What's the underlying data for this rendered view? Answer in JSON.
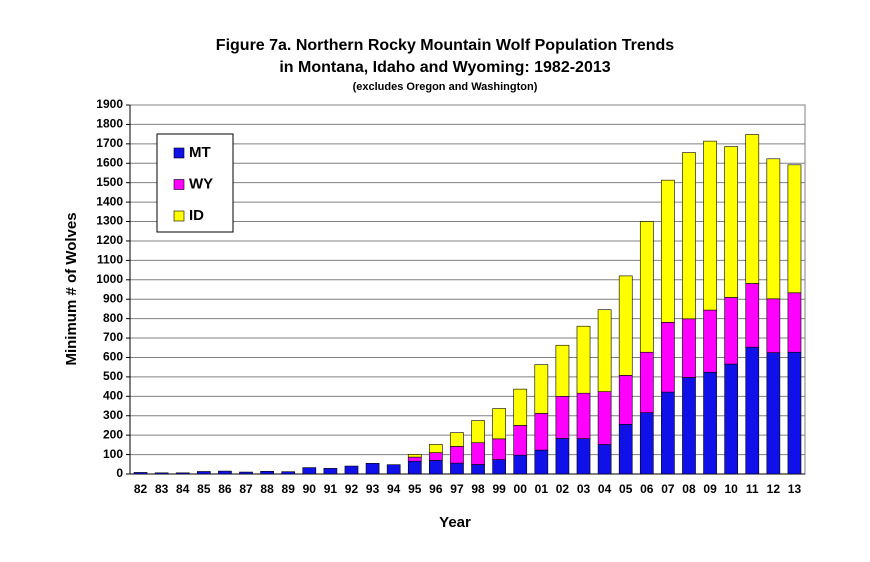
{
  "chart_data": {
    "type": "stacked-bar",
    "title": "Figure 7a.  Northern Rocky Mountain Wolf Population Trends",
    "subtitle": "in Montana, Idaho and Wyoming: 1982-2013",
    "note": "(excludes Oregon and Washington)",
    "x_label": "Year",
    "y_label": "Minimum # of Wolves",
    "categories": [
      "82",
      "83",
      "84",
      "85",
      "86",
      "87",
      "88",
      "89",
      "90",
      "91",
      "92",
      "93",
      "94",
      "95",
      "96",
      "97",
      "98",
      "99",
      "00",
      "01",
      "02",
      "03",
      "04",
      "05",
      "06",
      "07",
      "08",
      "09",
      "10",
      "11",
      "12",
      "13"
    ],
    "series": [
      {
        "name": "MT",
        "color": "#1010e8",
        "values": [
          8,
          6,
          6,
          13,
          15,
          10,
          14,
          12,
          33,
          29,
          41,
          55,
          48,
          66,
          70,
          56,
          49,
          74,
          97,
          123,
          183,
          182,
          152,
          256,
          316,
          422,
          497,
          524,
          566,
          653,
          625,
          627
        ]
      },
      {
        "name": "WY",
        "color": "#ff00ff",
        "values": [
          0,
          0,
          0,
          0,
          0,
          0,
          0,
          0,
          0,
          0,
          0,
          0,
          0,
          21,
          40,
          86,
          112,
          107,
          153,
          189,
          217,
          234,
          272,
          252,
          311,
          359,
          302,
          320,
          343,
          328,
          277,
          306
        ]
      },
      {
        "name": "ID",
        "color": "#ffff00",
        "values": [
          0,
          0,
          0,
          0,
          0,
          0,
          0,
          0,
          0,
          0,
          0,
          0,
          0,
          14,
          42,
          71,
          114,
          156,
          187,
          251,
          263,
          345,
          422,
          512,
          673,
          732,
          856,
          870,
          777,
          767,
          721,
          659
        ]
      }
    ],
    "ylim": [
      0,
      1900
    ],
    "yticks": [
      0,
      100,
      200,
      300,
      400,
      500,
      600,
      700,
      800,
      900,
      1000,
      1100,
      1200,
      1300,
      1400,
      1500,
      1600,
      1700,
      1800,
      1900
    ],
    "grid": true,
    "legend": "upper left"
  }
}
